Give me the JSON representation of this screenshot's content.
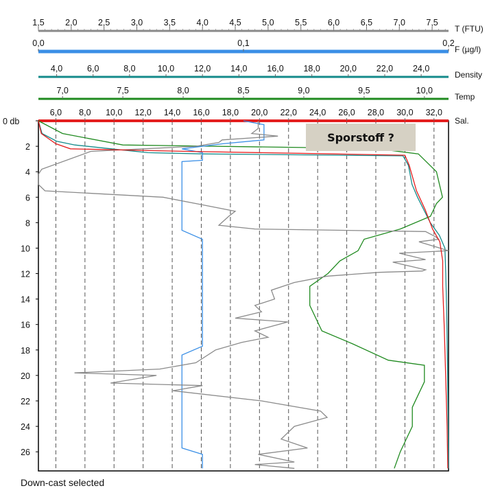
{
  "status": "Down-cast selected",
  "chart_data": {
    "type": "line",
    "annotation": "Sporstoff ?",
    "grid": true,
    "depth_axis": {
      "unit_label": "db",
      "range": [
        0,
        27.5
      ],
      "ticks": [
        "0 db",
        "2",
        "4",
        "6",
        "8",
        "10",
        "12",
        "14",
        "16",
        "18",
        "20",
        "22",
        "24",
        "26"
      ]
    },
    "top_axes": [
      {
        "id": "T",
        "name": "T (FTU)",
        "color": "#8a8a8a",
        "range": [
          1.5,
          7.75
        ],
        "ticks": [
          [
            1.5,
            "1,5"
          ],
          [
            2.0,
            "2,0"
          ],
          [
            2.5,
            "2,5"
          ],
          [
            3.0,
            "3,0"
          ],
          [
            3.5,
            "3,5"
          ],
          [
            4.0,
            "4,0"
          ],
          [
            4.5,
            "4,5"
          ],
          [
            5.0,
            "5,0"
          ],
          [
            5.5,
            "5,5"
          ],
          [
            6.0,
            "6,0"
          ],
          [
            6.5,
            "6,5"
          ],
          [
            7.0,
            "7,0"
          ],
          [
            7.5,
            "7,5"
          ]
        ]
      },
      {
        "id": "F",
        "name": "F (µg/l)",
        "color": "#3a8fe6",
        "range": [
          0.0,
          0.2
        ],
        "ticks": [
          [
            0.0,
            "0,0"
          ],
          [
            0.1,
            "0,1"
          ],
          [
            0.2,
            "0,2"
          ]
        ]
      },
      {
        "id": "Density",
        "name": "Density",
        "color": "#138a8a",
        "range": [
          3.0,
          25.5
        ],
        "ticks": [
          [
            4.0,
            "4,0"
          ],
          [
            6.0,
            "6,0"
          ],
          [
            8.0,
            "8,0"
          ],
          [
            10.0,
            "10,0"
          ],
          [
            12.0,
            "12,0"
          ],
          [
            14.0,
            "14,0"
          ],
          [
            16.0,
            "16,0"
          ],
          [
            18.0,
            "18,0"
          ],
          [
            20.0,
            "20,0"
          ],
          [
            22.0,
            "22,0"
          ],
          [
            24.0,
            "24,0"
          ]
        ]
      },
      {
        "id": "Temp",
        "name": "Temp",
        "color": "#1f8a1f",
        "range": [
          6.8,
          10.2
        ],
        "ticks": [
          [
            7.0,
            "7,0"
          ],
          [
            7.5,
            "7,5"
          ],
          [
            8.0,
            "8,0"
          ],
          [
            8.5,
            "8,5"
          ],
          [
            9.0,
            "9,0"
          ],
          [
            9.5,
            "9,5"
          ],
          [
            10.0,
            "10,0"
          ]
        ]
      },
      {
        "id": "Sal",
        "name": "Sal.",
        "color": "#e41e1e",
        "range": [
          4.8,
          33.0
        ],
        "ticks": [
          [
            6.0,
            "6,0"
          ],
          [
            8.0,
            "8,0"
          ],
          [
            10.0,
            "10,0"
          ],
          [
            12.0,
            "12,0"
          ],
          [
            14.0,
            "14,0"
          ],
          [
            16.0,
            "16,0"
          ],
          [
            18.0,
            "18,0"
          ],
          [
            20.0,
            "20,0"
          ],
          [
            22.0,
            "22,0"
          ],
          [
            24.0,
            "24,0"
          ],
          [
            26.0,
            "26,0"
          ],
          [
            28.0,
            "28,0"
          ],
          [
            30.0,
            "30,0"
          ],
          [
            32.0,
            "32,0"
          ]
        ]
      }
    ],
    "series": [
      {
        "axis": "T",
        "color": "#8a8a8a",
        "points": [
          [
            4.85,
            0
          ],
          [
            4.85,
            0.6
          ],
          [
            4.75,
            1.0
          ],
          [
            5.15,
            1.2
          ],
          [
            4.3,
            1.5
          ],
          [
            4.25,
            1.7
          ],
          [
            3.9,
            2.0
          ],
          [
            2.3,
            2.4
          ],
          [
            1.55,
            3.8
          ],
          [
            1.5,
            4.2
          ],
          [
            1.5,
            5.0
          ],
          [
            1.6,
            5.5
          ],
          [
            3.4,
            6.0
          ],
          [
            4.0,
            6.6
          ],
          [
            4.5,
            7.1
          ],
          [
            4.4,
            7.5
          ],
          [
            4.25,
            8.2
          ],
          [
            4.8,
            8.5
          ],
          [
            7.4,
            8.7
          ],
          [
            7.55,
            9.1
          ],
          [
            7.6,
            9.3
          ],
          [
            7.3,
            9.5
          ],
          [
            7.8,
            10.2
          ],
          [
            7.0,
            10.4
          ],
          [
            7.4,
            10.9
          ],
          [
            6.9,
            11.1
          ],
          [
            7.4,
            11.7
          ],
          [
            7.35,
            11.8
          ],
          [
            6.7,
            11.9
          ],
          [
            5.9,
            12.2
          ],
          [
            5.4,
            12.7
          ],
          [
            5.05,
            13.3
          ],
          [
            5.1,
            14.0
          ],
          [
            4.8,
            14.5
          ],
          [
            4.9,
            15.0
          ],
          [
            4.5,
            15.5
          ],
          [
            5.3,
            15.8
          ],
          [
            4.8,
            16.5
          ],
          [
            5.0,
            17.0
          ],
          [
            4.6,
            17.4
          ],
          [
            4.2,
            18.0
          ],
          [
            3.9,
            19.0
          ],
          [
            3.35,
            19.5
          ],
          [
            2.05,
            19.8
          ],
          [
            3.3,
            20.0
          ],
          [
            2.6,
            20.6
          ],
          [
            4.0,
            20.8
          ],
          [
            3.55,
            21.2
          ],
          [
            4.9,
            22.0
          ],
          [
            5.8,
            22.8
          ],
          [
            5.9,
            23.3
          ],
          [
            5.4,
            24.0
          ],
          [
            5.2,
            25.0
          ],
          [
            5.6,
            25.7
          ],
          [
            4.85,
            26.2
          ],
          [
            5.4,
            26.8
          ],
          [
            4.8,
            27.0
          ],
          [
            5.4,
            27.3
          ]
        ]
      },
      {
        "axis": "F",
        "color": "#3a8fe6",
        "points": [
          [
            0.1,
            0
          ],
          [
            0.11,
            0.3
          ],
          [
            0.11,
            1.5
          ],
          [
            0.09,
            1.8
          ],
          [
            0.07,
            2.2
          ],
          [
            0.08,
            2.5
          ],
          [
            0.08,
            3.1
          ],
          [
            0.07,
            3.2
          ],
          [
            0.07,
            8.6
          ],
          [
            0.08,
            9.3
          ],
          [
            0.08,
            17.7
          ],
          [
            0.07,
            18.4
          ],
          [
            0.07,
            25.7
          ],
          [
            0.08,
            26.2
          ],
          [
            0.08,
            27.3
          ]
        ]
      },
      {
        "axis": "Density",
        "color": "#138a8a",
        "points": [
          [
            3.0,
            0
          ],
          [
            3.2,
            1.0
          ],
          [
            4.0,
            1.6
          ],
          [
            5.0,
            1.9
          ],
          [
            7.0,
            2.2
          ],
          [
            9.0,
            2.5
          ],
          [
            12.0,
            2.6
          ],
          [
            23.0,
            2.75
          ],
          [
            23.3,
            3.5
          ],
          [
            23.5,
            5.0
          ],
          [
            23.8,
            6.0
          ],
          [
            24.5,
            8.0
          ],
          [
            25.0,
            9.0
          ],
          [
            25.3,
            10.0
          ],
          [
            25.35,
            12.0
          ],
          [
            25.4,
            15.0
          ],
          [
            25.45,
            20.0
          ],
          [
            25.5,
            27.3
          ]
        ]
      },
      {
        "axis": "Temp",
        "color": "#1f8a1f",
        "points": [
          [
            6.8,
            0
          ],
          [
            7.0,
            1.0
          ],
          [
            7.5,
            1.9
          ],
          [
            9.0,
            2.1
          ],
          [
            9.7,
            2.3
          ],
          [
            9.95,
            2.6
          ],
          [
            10.1,
            4.0
          ],
          [
            10.15,
            6.0
          ],
          [
            10.1,
            6.5
          ],
          [
            10.05,
            7.5
          ],
          [
            9.8,
            8.5
          ],
          [
            9.5,
            9.3
          ],
          [
            9.45,
            10.2
          ],
          [
            9.3,
            11.0
          ],
          [
            9.2,
            12.0
          ],
          [
            9.05,
            13.0
          ],
          [
            9.05,
            14.5
          ],
          [
            9.15,
            16.5
          ],
          [
            9.4,
            17.5
          ],
          [
            9.7,
            18.8
          ],
          [
            10.0,
            19.2
          ],
          [
            10.0,
            20.5
          ],
          [
            9.95,
            21.5
          ],
          [
            9.9,
            22.5
          ],
          [
            9.9,
            24.0
          ],
          [
            9.85,
            25.0
          ],
          [
            9.8,
            26.0
          ],
          [
            9.75,
            27.3
          ]
        ]
      },
      {
        "axis": "Sal",
        "color": "#e41e1e",
        "points": [
          [
            4.8,
            0
          ],
          [
            5.0,
            1.0
          ],
          [
            6.0,
            1.8
          ],
          [
            7.0,
            2.2
          ],
          [
            15.0,
            2.4
          ],
          [
            25.0,
            2.6
          ],
          [
            30.0,
            2.7
          ],
          [
            30.3,
            3.5
          ],
          [
            30.8,
            5.5
          ],
          [
            31.4,
            7.0
          ],
          [
            31.9,
            8.5
          ],
          [
            32.4,
            9.5
          ],
          [
            32.6,
            11.0
          ],
          [
            32.6,
            13.0
          ],
          [
            32.7,
            16.0
          ],
          [
            32.8,
            20.0
          ],
          [
            32.9,
            24.0
          ],
          [
            32.95,
            27.3
          ]
        ]
      }
    ]
  }
}
